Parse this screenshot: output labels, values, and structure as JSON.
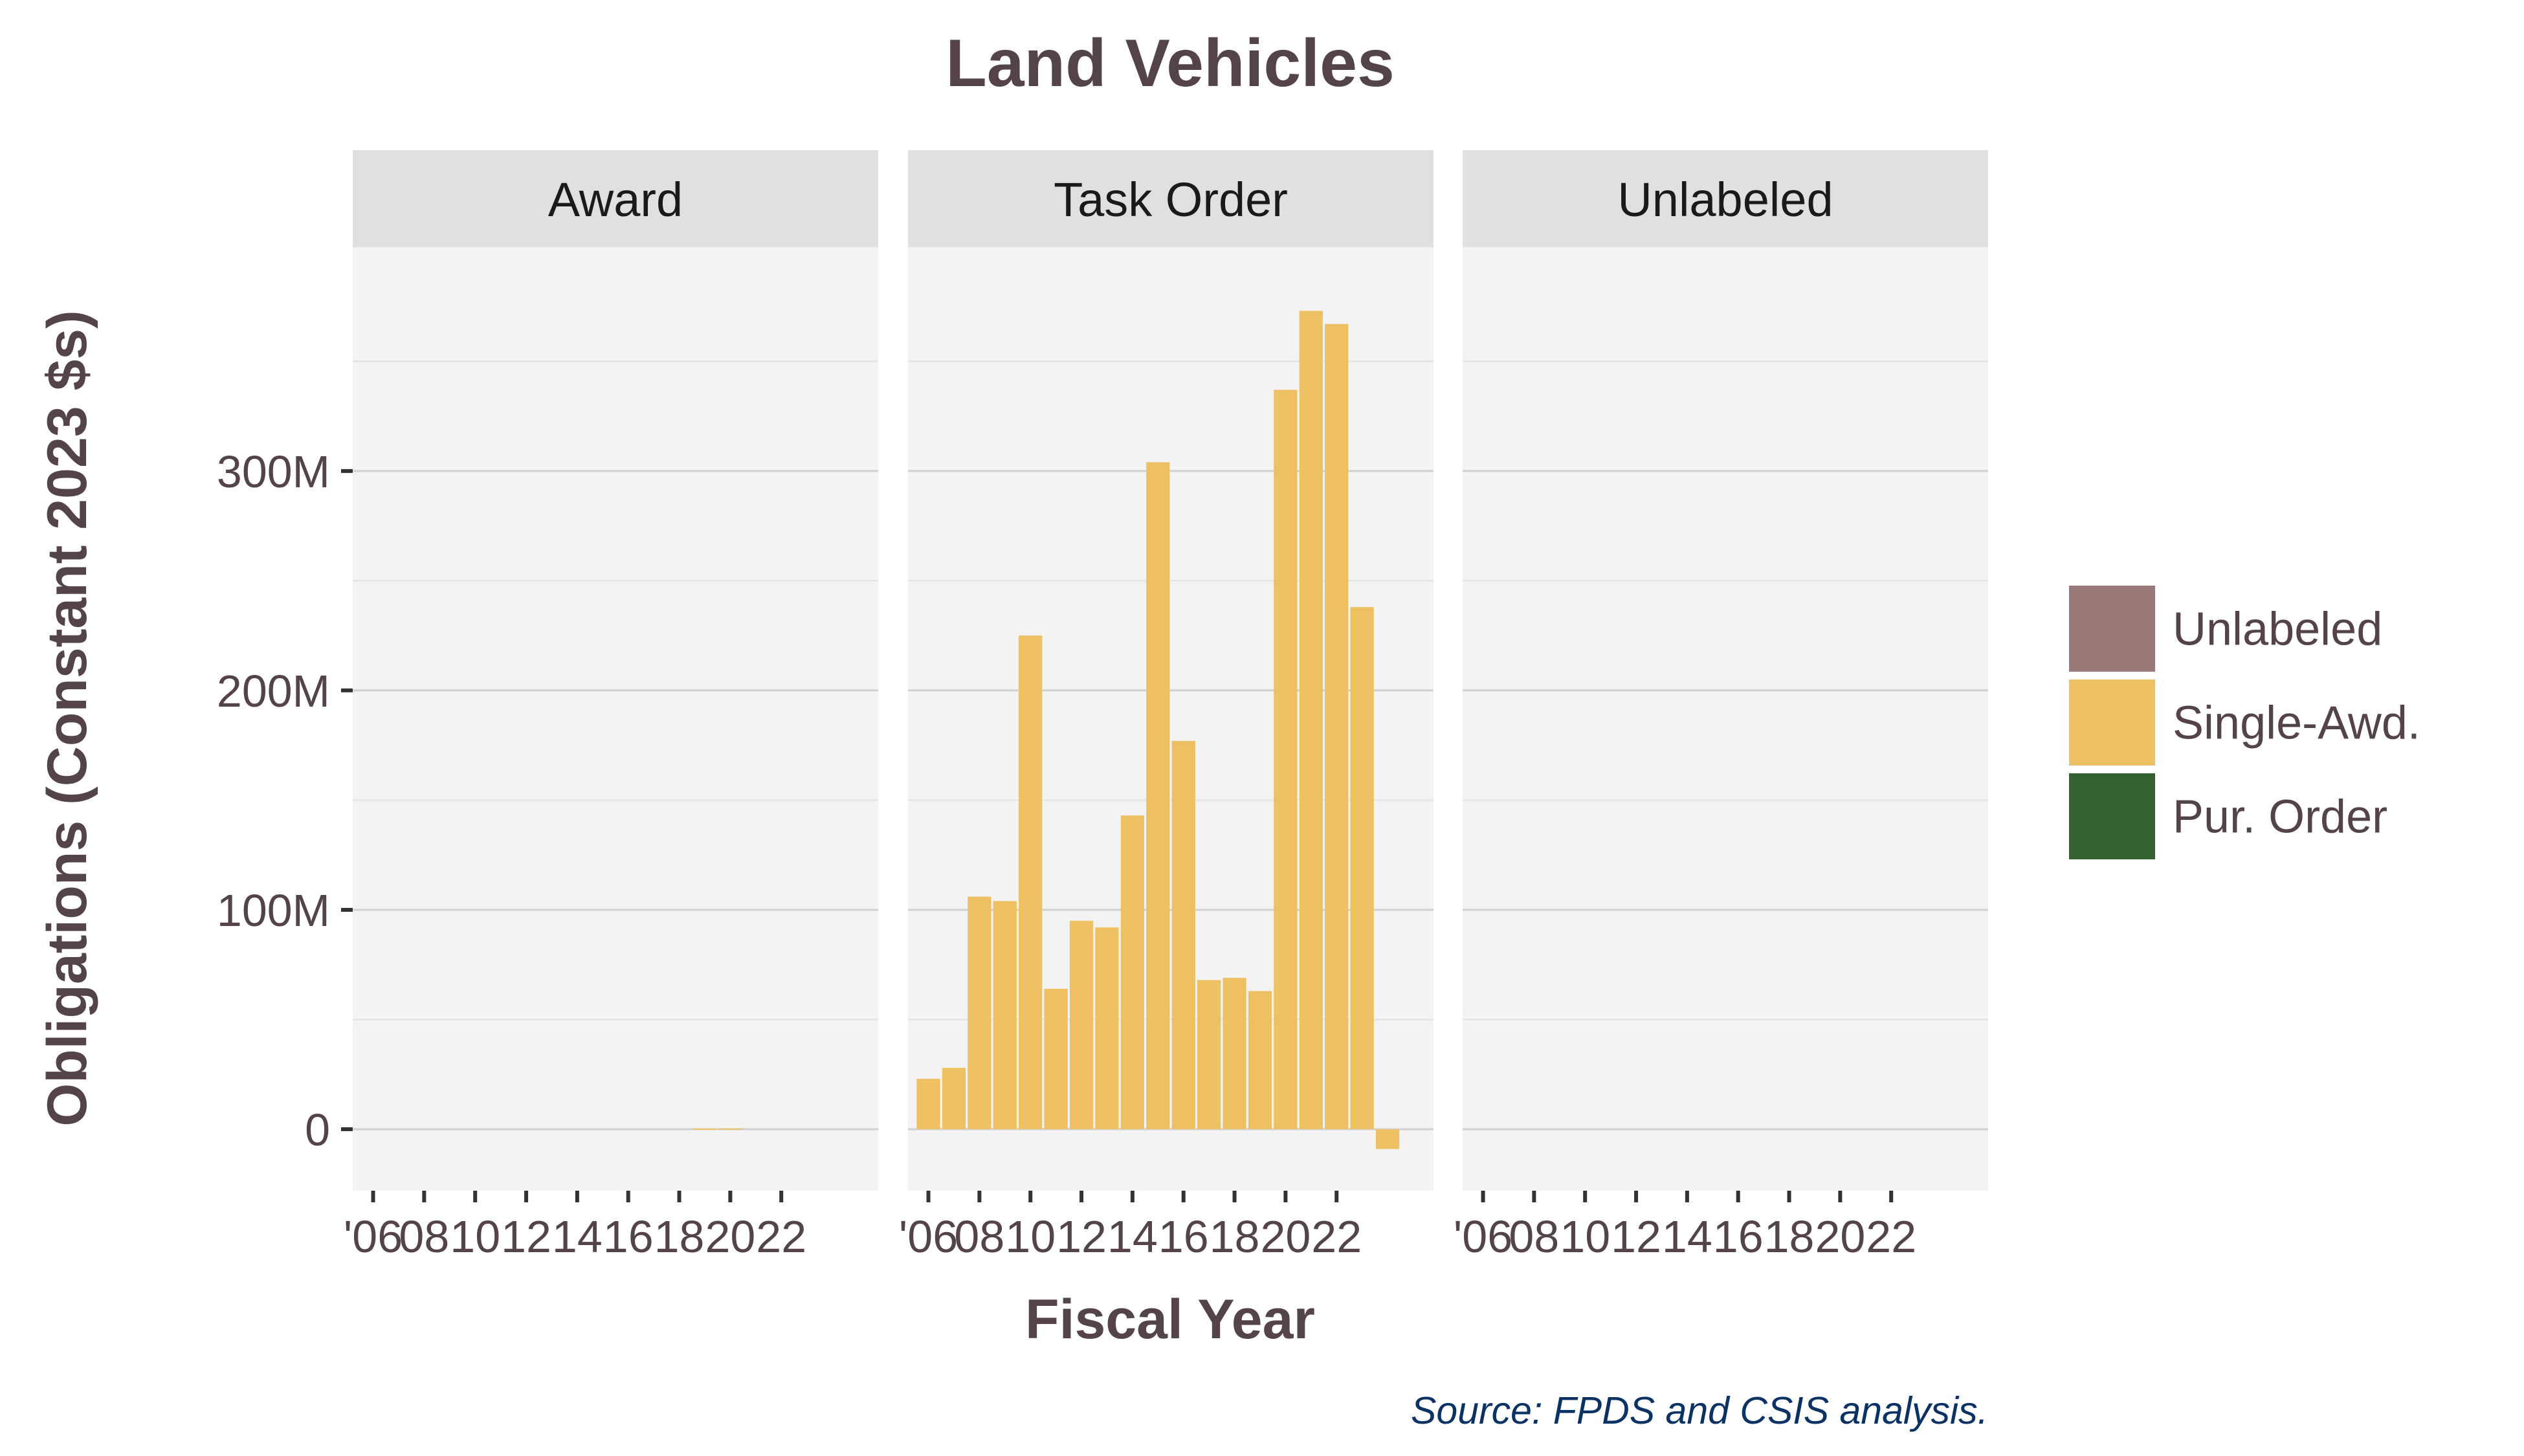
{
  "chart_data": {
    "type": "bar",
    "title": "Land Vehicles",
    "xlabel": "Fiscal Year",
    "ylabel": "Obligations (Constant 2023 $s)",
    "caption": "Source: FPDS and CSIS analysis.",
    "ylim": [
      -28,
      402
    ],
    "y_ticks": [
      0,
      100,
      200,
      300
    ],
    "y_tick_labels": [
      "0",
      "100M",
      "200M",
      "300M"
    ],
    "y_minor_ticks": [
      50,
      150,
      250,
      350
    ],
    "x_ticks": [
      2006,
      2008,
      2010,
      2012,
      2014,
      2016,
      2018,
      2020,
      2022
    ],
    "x_tick_labels": [
      "'06",
      "08",
      "10",
      "12",
      "14",
      "16",
      "18",
      "20",
      "22"
    ],
    "xlim": [
      2005.2,
      2025.8
    ],
    "grid": true,
    "legend_position": "right",
    "legend": [
      {
        "name": "Unlabeled",
        "color": "#997877"
      },
      {
        "name": "Single-Awd.",
        "color": "#EDC163"
      },
      {
        "name": "Pur. Order",
        "color": "#33612F"
      }
    ],
    "facets": [
      {
        "label": "Award",
        "series": [
          {
            "name": "Single-Awd.",
            "color": "#EDC163",
            "x": [
              2019,
              2020
            ],
            "values": [
              0.3,
              0.4
            ]
          }
        ]
      },
      {
        "label": "Task Order",
        "series": [
          {
            "name": "Single-Awd.",
            "color": "#EDC163",
            "x": [
              2006,
              2007,
              2008,
              2009,
              2010,
              2011,
              2012,
              2013,
              2014,
              2015,
              2016,
              2017,
              2018,
              2019,
              2020,
              2021,
              2022,
              2023,
              2024
            ],
            "values": [
              23,
              28,
              106,
              104,
              225,
              64,
              95,
              92,
              143,
              304,
              177,
              68,
              69,
              63,
              337,
              373,
              367,
              238,
              -9
            ]
          }
        ]
      },
      {
        "label": "Unlabeled",
        "series": []
      }
    ]
  }
}
